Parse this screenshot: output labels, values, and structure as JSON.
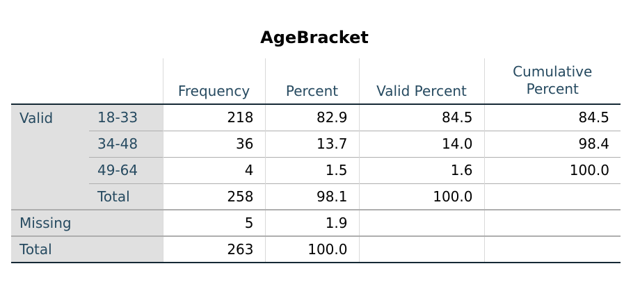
{
  "title": "AgeBracket",
  "headers": {
    "frequency": "Frequency",
    "percent": "Percent",
    "valid_percent": "Valid Percent",
    "cumulative_percent_line1": "Cumulative",
    "cumulative_percent_line2": "Percent"
  },
  "groups": {
    "valid": "Valid",
    "missing": "Missing",
    "total": "Total"
  },
  "rows": [
    {
      "label": "18-33",
      "frequency": "218",
      "percent": "82.9",
      "valid_percent": "84.5",
      "cumulative_percent": "84.5"
    },
    {
      "label": "34-48",
      "frequency": "36",
      "percent": "13.7",
      "valid_percent": "14.0",
      "cumulative_percent": "98.4"
    },
    {
      "label": "49-64",
      "frequency": "4",
      "percent": "1.5",
      "valid_percent": "1.6",
      "cumulative_percent": "100.0"
    },
    {
      "label": "Total",
      "frequency": "258",
      "percent": "98.1",
      "valid_percent": "100.0",
      "cumulative_percent": ""
    }
  ],
  "missing_row": {
    "frequency": "5",
    "percent": "1.9"
  },
  "total_row": {
    "frequency": "263",
    "percent": "100.0"
  }
}
